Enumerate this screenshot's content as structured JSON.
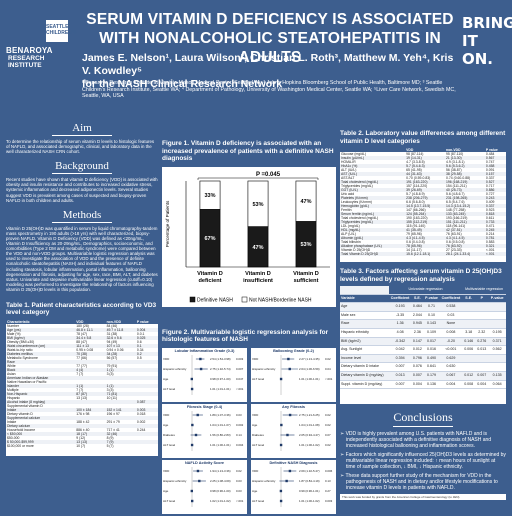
{
  "header": {
    "logo_badge": "SEATTLE CHILDREN'S",
    "logo_line1": "BENAROYA",
    "logo_line2": "RESEARCH INSTITUTE",
    "brand": "BRING IT ON.",
    "title": "SERUM VITAMIN D DEFICIENCY IS ASSOCIATED WITH NONALCOHOLIC STEATOHEPATITIS IN ADULTS",
    "authors": "James E. Nelson¹, Laura Wilson², Christian L. Roth³, Matthew M. Yeh⁴, Kris V. Kowdley⁵",
    "group": "for the NASH Clinical Research Network",
    "affiliations": "¹ Benaroya Research Institute at Virginia Mason Medical Center, Seattle WA; ² Johns Hopkins Bloomberg School of Public Health, Baltimore MD; ³ Seattle Children's Research Institute, Seattle WA; ⁴ Department of Pathology, University of Washington Medical Center, Seattle WA; ⁵Liver Care Network, Swedish MC, Seattle, WA, USA"
  },
  "left": {
    "aim_heading": "Aim",
    "aim_text": "To determine the relationship of serum vitamin D levels to histologic features of NAFLD, and associated demographic, clinical, and laboratory data in the well characterized NASH CRN cohort.",
    "background_heading": "Background",
    "background_text": "Recent studies have shown that vitamin D deficiency (VDD) is associated with obesity and insulin resistance and contributes to increased oxidative stress, systemic inflammation and decreased adiponectin levels. Several studies suggest VDD is prevalent among cases of suspected and biopsy-proven NAFLD in both children and adults.",
    "methods_heading": "Methods",
    "methods_text": "Vitamin D 25(OH)D was quantified in serum by liquid chromatography-tandem mass spectrometry in 190 adults (>18 yrs) with well characterized, biopsy-proven NAFLD. Vitamin D Deficiency (VDD) was defined as <20ng/mL, Vitamin D Insufficiency as 20-29ng/mL, Demographics, socioeconomic, and comorbidities (Type 2 DM and metabolic syndrome) were compared between the VDD and non-VDD groups. Multivariable logistic regression analysis was used to investigate the association of VDD and the presence of definite nonalcoholic steatohepatitis (NASH) and individual features of NAFLD including steatosis, lobular inflammation, portal inflammation, ballooning degeneration and fibrosis, adjusting for age, sex, race, BMI, ALT, and diabetes status. Univariate and stepwise multivariable linear regression (cutoff=0.10) modeling was performed to investigate the relationship of factors influencing vitamin D 25(OH)D levels in this population.",
    "table1_heading": "Table 1. Patient characteristics according to VD3 level category",
    "table1_cols": [
      "Characteristic",
      "VDD",
      "non-VDD",
      "P value"
    ],
    "table1_rows": [
      [
        "Number",
        "180 (28)",
        "84 (46)",
        ""
      ],
      [
        "Age (yrs)",
        "46.8 ± 11.1",
        "49.7 ± 11.8",
        "0.004"
      ],
      [
        "Male (%)",
        "78 (47)",
        "31 (38)",
        "0.0.1"
      ],
      [
        "BMI (kg/m²)",
        "34.4 ± 5.8",
        "32.6 ± 5.6",
        "0.025"
      ],
      [
        "Obesity (BMI ≥30)",
        "88 (47)",
        "94 (49)",
        "0.6"
      ],
      [
        "Waist circumference (cm)",
        "111 ± 13",
        "107 ± 13",
        "0.1"
      ],
      [
        "Waist-to-hip ratio",
        "0.95 ± 0.08",
        "0.94 ± 0.06",
        "0.34"
      ],
      [
        "Diabetes mellitus",
        "70 (38)",
        "34 (28)",
        "0.2"
      ],
      [
        "Metabolic Syndrome",
        "77 (66)",
        "56 (57)",
        "0.5"
      ],
      [
        "Race",
        "",
        "",
        ""
      ],
      [
        "White",
        "77 (77)",
        "79 (91)",
        ""
      ],
      [
        "Black",
        "4 (4)",
        "1 (1)",
        ""
      ],
      [
        "Asian",
        "7 (7)",
        "3 (3)",
        ""
      ],
      [
        "American Indian or Alaskan",
        "",
        "",
        ""
      ],
      [
        "Native Hawaiian or Pacific",
        "",
        "",
        ""
      ],
      [
        "Islander",
        "1 (1)",
        "1 (1)",
        ""
      ],
      [
        "Multiple",
        "7 (7)",
        "3 (3)",
        ""
      ],
      [
        "Non-Hispanic",
        "87 (87)",
        "71 (81)",
        ""
      ],
      [
        "Hispanic",
        "13 (13)",
        "10 (11)",
        ""
      ],
      [
        "Alcohol intake (8 mg/day)",
        "",
        "",
        "0.087"
      ],
      [
        "Supplemental vitamin D",
        "",
        "",
        ""
      ],
      [
        "Intake",
        "100 ± 184",
        "152 ± 141",
        "0.003"
      ],
      [
        "Dietary vitamin D",
        "176 ± 98",
        "196 ± 97",
        "0.018"
      ],
      [
        "Supplemental calcium",
        "",
        "",
        ""
      ],
      [
        "Intake",
        "188 ± 42",
        "291 ± 79",
        "0.002"
      ],
      [
        "Dietary calcium",
        "",
        "",
        ""
      ],
      [
        "Household income",
        "886 ± 40",
        "717 ± 41",
        "0.244"
      ],
      [
        "< $50,000",
        "18 (17)",
        "32 (46)",
        ""
      ],
      [
        "$50-000",
        "9 (12)",
        "8 (9)",
        ""
      ],
      [
        "$ 50,000-$99,999",
        "13 (13)",
        "7 (9)",
        ""
      ],
      [
        "$100,000 or more",
        "10 (7)",
        "5 (7)",
        ""
      ]
    ]
  },
  "middle": {
    "fig1_heading": "Figure 1. Vitamin D deficiency is associated with an increased prevalence of patients with a definitive NASH diagnosis",
    "fig2_heading": "Figure 2. Multivariable logistic regression analysis for histologic features of NASH",
    "forest_panels": [
      {
        "title": "Lobular Inflammation Grade (0-3)",
        "rows": [
          {
            "label": "VDD",
            "est": "2.54 (1.54-3.98)",
            "p": "0.003"
          },
          {
            "label": "Hispanic ethnicity",
            "est": "2.75 (1.32-5.74)",
            "p": "0.007"
          },
          {
            "label": "Age",
            "est": "0.98 (0.97-1.00)",
            "p": "0.047"
          },
          {
            "label": "ALT level",
            "est": "1.01 (1.01-1.01)",
            "p": "<.001"
          }
        ]
      },
      {
        "title": "Ballooning Grade (0-2)",
        "rows": [
          {
            "label": "VDD",
            "est": "2.27 (1.13-4.35)",
            "p": "0.02"
          },
          {
            "label": "Hispanic ethnicity",
            "est": "2.64 (1.06-6.59)",
            "p": "0.04"
          },
          {
            "label": "ALT level",
            "est": "1.01 (1.00-1.01)",
            "p": "<.001"
          }
        ]
      },
      {
        "title": "Fibrosis Stage (0-4)",
        "rows": [
          {
            "label": "VDD",
            "est": "1.89 (1.07-3.36)",
            "p": "0.03"
          },
          {
            "label": "Age",
            "est": "1.04 (1.01-1.07)",
            "p": "0.002"
          },
          {
            "label": "Diabetes",
            "est": "1.56 (0.86-2.83)",
            "p": "0.14"
          },
          {
            "label": "ALT level",
            "est": "1.01 (1.00-1.01)",
            "p": "0.004"
          }
        ]
      },
      {
        "title": "Any Fibrosis",
        "rows": [
          {
            "label": "VDD",
            "est": "2.75 (1.21-6.25)",
            "p": "0.02"
          },
          {
            "label": "Age",
            "est": "1.04 (1.01-1.08)",
            "p": "0.02"
          },
          {
            "label": "Diabetes",
            "est": "2.05 (0.94-4.47)",
            "p": "0.07"
          },
          {
            "label": "ALT level",
            "est": "1.01 (1.00-1.02)",
            "p": "0.02"
          }
        ]
      },
      {
        "title": "NAFLD Activity Score",
        "rows": [
          {
            "label": "VDD",
            "est": "1.94 (1.13-3.36)",
            "p": "0.02"
          },
          {
            "label": "Hispanic ethnicity",
            "est": "2.25 (1.08-4.69)",
            "p": "0.03"
          },
          {
            "label": "Age",
            "est": "0.98 (0.96-1.00)",
            "p": "0.03"
          },
          {
            "label": "ALT level",
            "est": "1.02 (1.01-1.02)",
            "p": "<.001"
          }
        ]
      },
      {
        "title": "Definitive NASH Diagnosis",
        "rows": [
          {
            "label": "VDD",
            "est": "2.69 (1.32-5.47)",
            "p": "0.006"
          },
          {
            "label": "Hispanic ethnicity",
            "est": "1.87 (0.84-4.19)",
            "p": "0.13"
          },
          {
            "label": "Age",
            "est": "0.99 (0.96-1.01)",
            "p": "0.27"
          },
          {
            "label": "ALT level",
            "est": "1.01 (1.00-1.02)",
            "p": "0.003"
          }
        ]
      }
    ]
  },
  "right": {
    "table2_heading": "Table 2. Laboratory value differences among different vitamin D level categories",
    "table2_cols": [
      "",
      "VDD",
      "non-VDD",
      "P value"
    ],
    "table2_rows": [
      [
        "Glucose (mg/dL)",
        "98 (87-114)",
        "95 (87-110)",
        "0.484"
      ],
      [
        "Insulin (μU/mL)",
        "19 (14-31)",
        "21 (13-30)",
        "0.567"
      ],
      [
        "HOMA-IR",
        "4.7 (3.3-8.5)",
        "4.9 (3.1-8.1)",
        "0.747"
      ],
      [
        "HbA1c (%)",
        "5.7 (5.4-6.3)",
        "5.6 (5.3-6.2)",
        "0.458"
      ],
      [
        "ALT (IU/L)",
        "65 (41-95)",
        "56 (38-87)",
        "0.091"
      ],
      [
        "AST (IU/L)",
        "44 (31-63)",
        "38 (29-58)",
        "0.157"
      ],
      [
        "AST/ALT",
        "0.70 (0.59-0.83)",
        "0.74 (0.60-0.88)",
        "0.337"
      ],
      [
        "Total cholesterol (mg/dL)",
        "191 (163-220)",
        "196 (168-219)",
        "0.527"
      ],
      [
        "Triglycerides (mg/dL)",
        "157 (114-220)",
        "154 (111-211)",
        "0.717"
      ],
      [
        "GGT (IU/L)",
        "39 (26-69)",
        "40 (25-73)",
        "0.886"
      ],
      [
        "Uric acid",
        "5.7 (4.8-6.9)",
        "5.6 (4.8-6.7)",
        "0.727"
      ],
      [
        "Platelets (K/cmm)",
        "238 (206-279)",
        "231 (198-265)",
        "0.243"
      ],
      [
        "Leukocytes (K/cmm)",
        "6.6 (5.6-8.0)",
        "6.5 (5.4-7.6)",
        "0.409"
      ],
      [
        "Hemoglobin (g/dL)",
        "14.5 (13.7-15.5)",
        "14.3 (13.4-15.2)",
        "0.337"
      ],
      [
        "Ferritin",
        "147 (66-266)",
        "148 (77-258)",
        "0.923"
      ],
      [
        "Serum ferritin (ng/mL)",
        "124 (55-264)",
        "133 (63-245)",
        "0.818"
      ],
      [
        "Total cholesterol (mg/dL)",
        "190 (163-220)",
        "193 (166-219)",
        "0.611"
      ],
      [
        "Triglycerides (mg/dL)",
        "155 (112-219)",
        "151 (111-211)",
        "0.733"
      ],
      [
        "LDL (mg/dL)",
        "115 (91-140)",
        "118 (96-141)",
        "0.471"
      ],
      [
        "HDL (mg/dL)",
        "41 (35-49)",
        "42 (37-51)",
        "0.245"
      ],
      [
        "ALP (U/L)",
        "79 (65-96)",
        "76 (63-91)",
        "0.214"
      ],
      [
        "Albumin (g/dL)",
        "4.3 (4.1-4.5)",
        "4.3 (4.1-4.5)",
        "0.781"
      ],
      [
        "Total bilirubin",
        "0.6 (0.4-0.8)",
        "0.6 (0.5-0.8)",
        "0.583"
      ],
      [
        "Alkaline phosphatase (U/L)",
        "78 (65-96)",
        "76 (63-92)",
        "0.321"
      ],
      [
        "Vitamin D 25(OH)D",
        "14 (11-17)",
        "27 (23-33)",
        "<.001"
      ],
      [
        "Total Vitamin D 25(OH)D",
        "15.6 (12.1-18.1)",
        "28.1 (24.1-33.4)",
        "<.001"
      ]
    ],
    "table3_heading": "Table 3. Factors affecting serum vitamin D 25(OH)D3 levels defined by regression analysis",
    "table3_group_uni": "Univariate regression",
    "table3_group_multi": "Multivariable regression",
    "table3_cols": [
      "Variable",
      "Coefficient",
      "S.E.",
      "P-value",
      "Coefficient",
      "S.E.",
      "P",
      "P-value"
    ],
    "table3_rows": [
      [
        "Age",
        "0.193",
        "0.464",
        "0.71",
        "0.538",
        "",
        "",
        ""
      ],
      [
        "Male sex",
        "-3.35",
        "2.044",
        "0.10",
        "0.03",
        "",
        "",
        ""
      ],
      [
        "Race",
        "1.36",
        "0.945",
        "0.143",
        "None",
        "",
        "",
        ""
      ],
      [
        "Hispanic ethnicity",
        "4.08",
        "2.36",
        "0.109",
        "0.008",
        "3.18",
        "2.32",
        "0.195"
      ],
      [
        "BMI (kg/m2)",
        "-0.342",
        "0.147",
        "0.017",
        "-0.20",
        "0.146",
        "0.276",
        "0.371"
      ],
      [
        "Avg. Sunlight",
        "0.042",
        "0.012",
        "0.016",
        "<0.001",
        "0.006",
        "0.013",
        "0.562"
      ],
      [
        "Income level",
        "0.394",
        "0.796",
        "0.490",
        "0.629",
        "",
        "",
        ""
      ],
      [
        "Dietary vitamin D intake",
        "0.007",
        "0.076",
        "0.641",
        "0.630",
        "",
        "",
        ""
      ],
      [
        "Dietary vitamin D (mg/day)",
        "0.013",
        "0.007",
        "0.179",
        "0.067",
        "0.012",
        "0.007",
        "0.135"
      ],
      [
        "Suppl. vitamin D (mg/day)",
        "0.007",
        "0.004",
        "0.136",
        "0.004",
        "0.008",
        "0.004",
        "0.064"
      ]
    ],
    "conclusions_heading": "Conclusions",
    "conclusions": [
      "VDD is highly prevalent among U.S. patients with NAFLD and is independently associated with a definitive diagnosis of NASH and increased histological ballooning and inflammation scores.",
      "Factors which significantly influenced 25(OH)D3 levels as determined by multivariable linear regression included: ↑ mean hours of sunlight at time of sample collection, ↓ BMI, ↓ Hispanic ethnicity.",
      "These data support further study of the mechanism for VDD in the pathogenesis of NASH and in dietary and/or lifestyle modifications to increase vitamin D levels in patients with NAFLD."
    ],
    "footer": "This work was funded by grants from the American College of Gastroenterology (to JEN)."
  },
  "chart_data": {
    "type": "bar",
    "stacked": true,
    "annotation": "P =0.045",
    "ylabel": "Percentage of Patients",
    "categories": [
      "Vitamin D deficient",
      "Vitamin D insufficient",
      "Vitamin D sufficient"
    ],
    "series": [
      {
        "name": "Definitive NASH",
        "values": [
          67,
          47,
          53
        ],
        "labels": [
          "67%",
          "47%",
          "53%"
        ],
        "color": "#1a1a1a"
      },
      {
        "name": "Not NASH/Borderline NASH",
        "values": [
          33,
          53,
          47
        ],
        "labels": [
          "33%",
          "53%",
          "47%"
        ],
        "color": "#ffffff"
      }
    ],
    "ylim": [
      0,
      100
    ],
    "legend": "bottom"
  },
  "colors": {
    "background": "#3d5e8e",
    "panel": "#ffffff"
  }
}
